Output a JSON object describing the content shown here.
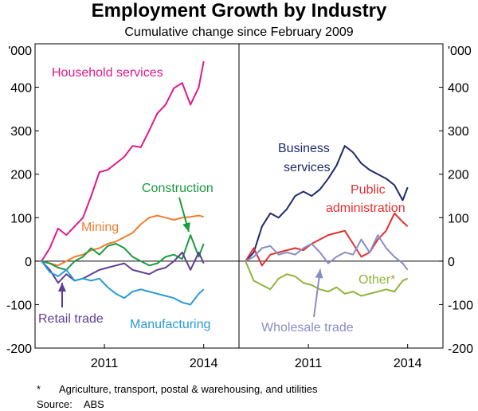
{
  "title": "Employment Growth by Industry",
  "subtitle": "Cumulative change since February 2009",
  "footnote": {
    "mark": "*",
    "text": "Agriculture, transport, postal & warehousing, and utilities"
  },
  "source": {
    "label": "Source:",
    "value": "ABS"
  },
  "chart_data": {
    "type": "line",
    "unit_label": "'000",
    "ylim": [
      -200,
      500
    ],
    "yticks": [
      -200,
      -100,
      0,
      100,
      200,
      300,
      400
    ],
    "xlim": [
      2009.0,
      2014.2
    ],
    "xticks": [
      2011,
      2014
    ],
    "panels": [
      {
        "name": "left",
        "series": [
          {
            "name": "Household services",
            "color": "#e0198a",
            "x": [
              2009.1,
              2009.35,
              2009.6,
              2009.85,
              2010.1,
              2010.35,
              2010.6,
              2010.85,
              2011.1,
              2011.35,
              2011.6,
              2011.85,
              2012.1,
              2012.35,
              2012.6,
              2012.85,
              2013.1,
              2013.35,
              2013.6,
              2013.85,
              2014.0
            ],
            "y": [
              0,
              30,
              75,
              60,
              80,
              100,
              150,
              205,
              210,
              225,
              240,
              265,
              262,
              300,
              340,
              360,
              398,
              410,
              360,
              400,
              460
            ]
          },
          {
            "name": "Mining",
            "color": "#f07c30",
            "x": [
              2009.1,
              2009.35,
              2009.6,
              2009.85,
              2010.1,
              2010.35,
              2010.6,
              2010.85,
              2011.1,
              2011.35,
              2011.6,
              2011.85,
              2012.1,
              2012.35,
              2012.6,
              2012.85,
              2013.1,
              2013.35,
              2013.6,
              2013.85,
              2014.0
            ],
            "y": [
              0,
              -5,
              -10,
              0,
              10,
              15,
              25,
              30,
              40,
              45,
              55,
              65,
              85,
              100,
              105,
              100,
              95,
              100,
              102,
              105,
              102
            ]
          },
          {
            "name": "Construction",
            "color": "#1a9c3e",
            "x": [
              2009.1,
              2009.35,
              2009.6,
              2009.85,
              2010.1,
              2010.35,
              2010.6,
              2010.85,
              2011.1,
              2011.35,
              2011.6,
              2011.85,
              2012.1,
              2012.35,
              2012.6,
              2012.85,
              2013.1,
              2013.35,
              2013.6,
              2013.85,
              2014.0
            ],
            "y": [
              0,
              -5,
              -15,
              -20,
              0,
              10,
              30,
              15,
              35,
              40,
              30,
              10,
              0,
              -10,
              -5,
              10,
              15,
              5,
              60,
              10,
              40
            ]
          },
          {
            "name": "Retail trade",
            "color": "#5e3e93",
            "x": [
              2009.1,
              2009.35,
              2009.6,
              2009.85,
              2010.1,
              2010.35,
              2010.6,
              2010.85,
              2011.1,
              2011.35,
              2011.6,
              2011.85,
              2012.1,
              2012.35,
              2012.6,
              2012.85,
              2013.1,
              2013.35,
              2013.6,
              2013.85,
              2014.0
            ],
            "y": [
              0,
              -20,
              -50,
              -30,
              -45,
              -40,
              -30,
              -20,
              -15,
              -10,
              -5,
              -20,
              -25,
              -30,
              -20,
              -15,
              0,
              20,
              -20,
              20,
              -5
            ]
          },
          {
            "name": "Manufacturing",
            "color": "#2a9ad8",
            "x": [
              2009.1,
              2009.35,
              2009.6,
              2009.85,
              2010.1,
              2010.35,
              2010.6,
              2010.85,
              2011.1,
              2011.35,
              2011.6,
              2011.85,
              2012.1,
              2012.35,
              2012.6,
              2012.85,
              2013.1,
              2013.35,
              2013.6,
              2013.85,
              2014.0
            ],
            "y": [
              0,
              -25,
              -35,
              -20,
              -45,
              -40,
              -45,
              -40,
              -60,
              -75,
              -85,
              -70,
              -65,
              -70,
              -75,
              -80,
              -85,
              -95,
              -100,
              -75,
              -65
            ]
          }
        ]
      },
      {
        "name": "right",
        "series": [
          {
            "name": "Business services",
            "color": "#1f2a6e",
            "x": [
              2009.1,
              2009.35,
              2009.6,
              2009.85,
              2010.1,
              2010.35,
              2010.6,
              2010.85,
              2011.1,
              2011.35,
              2011.6,
              2011.85,
              2012.1,
              2012.35,
              2012.6,
              2012.85,
              2013.1,
              2013.35,
              2013.6,
              2013.85,
              2014.0
            ],
            "y": [
              0,
              20,
              80,
              110,
              100,
              120,
              150,
              160,
              150,
              165,
              190,
              220,
              265,
              250,
              225,
              210,
              200,
              190,
              175,
              140,
              170
            ]
          },
          {
            "name": "Public administration",
            "color": "#e32e2e",
            "x": [
              2009.1,
              2009.35,
              2009.6,
              2009.85,
              2010.1,
              2010.35,
              2010.6,
              2010.85,
              2011.1,
              2011.35,
              2011.6,
              2011.85,
              2012.1,
              2012.35,
              2012.6,
              2012.85,
              2013.1,
              2013.35,
              2013.6,
              2013.85,
              2014.0
            ],
            "y": [
              0,
              30,
              -10,
              15,
              20,
              25,
              30,
              25,
              40,
              50,
              60,
              65,
              70,
              40,
              10,
              20,
              50,
              70,
              110,
              90,
              80
            ]
          },
          {
            "name": "Wholesale trade",
            "color": "#8a8dc5",
            "x": [
              2009.1,
              2009.35,
              2009.6,
              2009.85,
              2010.1,
              2010.35,
              2010.6,
              2010.85,
              2011.1,
              2011.35,
              2011.6,
              2011.85,
              2012.1,
              2012.35,
              2012.6,
              2012.85,
              2013.1,
              2013.35,
              2013.6,
              2013.85,
              2014.0
            ],
            "y": [
              0,
              10,
              30,
              35,
              15,
              20,
              15,
              30,
              40,
              20,
              -5,
              10,
              20,
              15,
              50,
              20,
              60,
              30,
              10,
              -5,
              -20
            ]
          },
          {
            "name": "Other*",
            "color": "#8fb43a",
            "x": [
              2009.1,
              2009.35,
              2009.6,
              2009.85,
              2010.1,
              2010.35,
              2010.6,
              2010.85,
              2011.1,
              2011.35,
              2011.6,
              2011.85,
              2012.1,
              2012.35,
              2012.6,
              2012.85,
              2013.1,
              2013.35,
              2013.6,
              2013.85,
              2014.0
            ],
            "y": [
              0,
              -45,
              -55,
              -65,
              -40,
              -30,
              -35,
              -50,
              -55,
              -65,
              -70,
              -60,
              -75,
              -70,
              -80,
              -75,
              -70,
              -65,
              -70,
              -45,
              -40
            ]
          }
        ]
      }
    ],
    "labels": [
      {
        "text": "Household services",
        "panel": 0,
        "series": 0
      },
      {
        "text": "Mining",
        "panel": 0,
        "series": 1
      },
      {
        "text": "Construction",
        "panel": 0,
        "series": 2
      },
      {
        "text": "Retail trade",
        "panel": 0,
        "series": 3
      },
      {
        "text": "Manufacturing",
        "panel": 0,
        "series": 4
      },
      {
        "text": "Business",
        "panel": 1,
        "series": 0
      },
      {
        "text": "services",
        "panel": 1,
        "series": 0
      },
      {
        "text": "Public",
        "panel": 1,
        "series": 1
      },
      {
        "text": "administration",
        "panel": 1,
        "series": 1
      },
      {
        "text": "Wholesale trade",
        "panel": 1,
        "series": 2
      },
      {
        "text": "Other*",
        "panel": 1,
        "series": 3
      }
    ]
  }
}
